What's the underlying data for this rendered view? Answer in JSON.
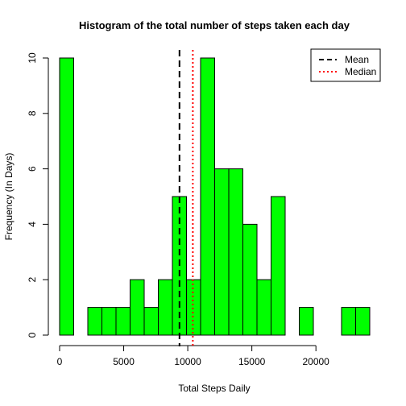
{
  "chart_data": {
    "type": "bar",
    "title": "Histogram of the total number of steps taken each day",
    "xlabel": "Total Steps Daily",
    "ylabel": "Frequency (In Days)",
    "bin_width": 1100,
    "bins": [
      {
        "start": 0,
        "end": 1100,
        "count": 10
      },
      {
        "start": 1100,
        "end": 2200,
        "count": 0
      },
      {
        "start": 2200,
        "end": 3300,
        "count": 1
      },
      {
        "start": 3300,
        "end": 4400,
        "count": 1
      },
      {
        "start": 4400,
        "end": 5500,
        "count": 1
      },
      {
        "start": 5500,
        "end": 6600,
        "count": 2
      },
      {
        "start": 6600,
        "end": 7700,
        "count": 1
      },
      {
        "start": 7700,
        "end": 8800,
        "count": 2
      },
      {
        "start": 8800,
        "end": 9900,
        "count": 5
      },
      {
        "start": 9900,
        "end": 11000,
        "count": 2
      },
      {
        "start": 11000,
        "end": 12100,
        "count": 10
      },
      {
        "start": 12100,
        "end": 13200,
        "count": 6
      },
      {
        "start": 13200,
        "end": 14300,
        "count": 6
      },
      {
        "start": 14300,
        "end": 15400,
        "count": 4
      },
      {
        "start": 15400,
        "end": 16500,
        "count": 2
      },
      {
        "start": 16500,
        "end": 17600,
        "count": 5
      },
      {
        "start": 17600,
        "end": 18700,
        "count": 0
      },
      {
        "start": 18700,
        "end": 19800,
        "count": 1
      },
      {
        "start": 19800,
        "end": 20900,
        "count": 0
      },
      {
        "start": 20900,
        "end": 22000,
        "count": 0
      },
      {
        "start": 22000,
        "end": 23100,
        "count": 1
      },
      {
        "start": 23100,
        "end": 24200,
        "count": 1
      }
    ],
    "xlim": [
      0,
      24200
    ],
    "ylim": [
      0,
      10
    ],
    "x_ticks": [
      {
        "value": 0,
        "label": "0"
      },
      {
        "value": 5000,
        "label": "5000"
      },
      {
        "value": 10000,
        "label": "10000"
      },
      {
        "value": 15000,
        "label": "15000"
      },
      {
        "value": 20000,
        "label": "20000"
      }
    ],
    "y_ticks": [
      {
        "value": 0,
        "label": "0"
      },
      {
        "value": 2,
        "label": "2"
      },
      {
        "value": 4,
        "label": "4"
      },
      {
        "value": 6,
        "label": "6"
      },
      {
        "value": 8,
        "label": "8"
      },
      {
        "value": 10,
        "label": "10"
      }
    ],
    "mean": 9354,
    "median": 10395,
    "bar_color": "#00ff00",
    "legend": {
      "position": "top-right",
      "entries": [
        {
          "label": "Mean",
          "color": "#000000",
          "style": "dashed"
        },
        {
          "label": "Median",
          "color": "#ff0000",
          "style": "dotted"
        }
      ]
    },
    "grid": false
  }
}
